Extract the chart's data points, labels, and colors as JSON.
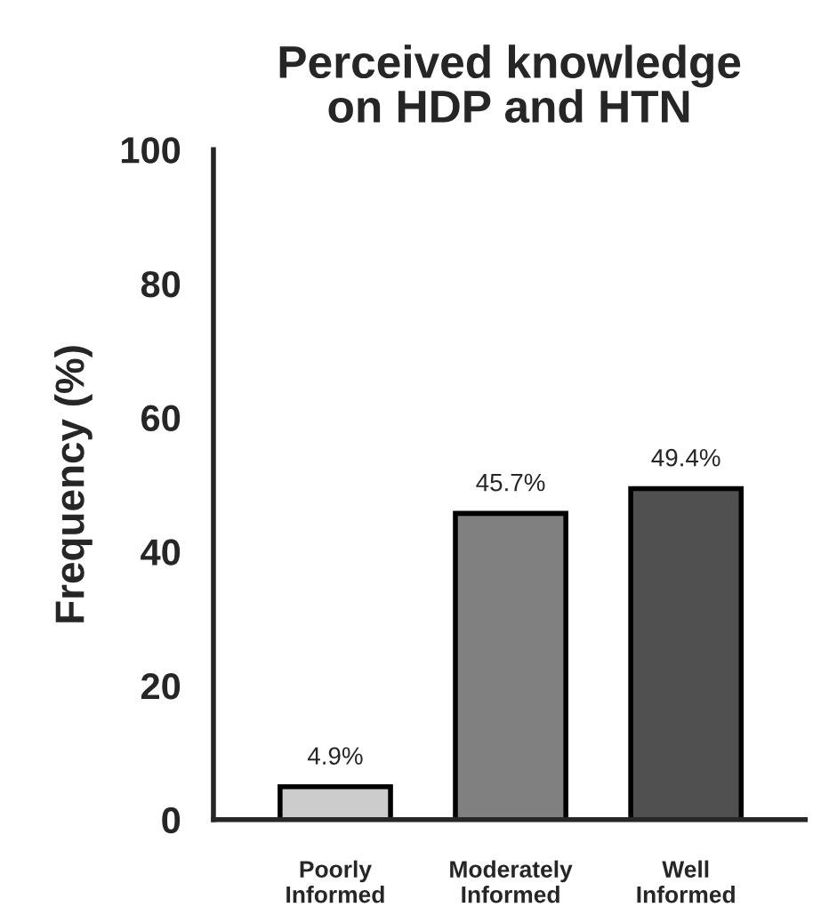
{
  "chart_data": {
    "type": "bar",
    "title": "Perceived knowledge\non HDP and HTN",
    "ylabel": "Frequency (%)",
    "categories": [
      "Poorly\nInformed",
      "Moderately\nInformed",
      "Well\nInformed"
    ],
    "values": [
      4.9,
      45.7,
      49.4
    ],
    "colors": [
      "#cccccc",
      "#808080",
      "#505050"
    ],
    "value_labels": [
      "4.9%",
      "45.7%",
      "49.4%"
    ],
    "ylim": [
      0,
      100
    ],
    "yticks": [
      0,
      20,
      40,
      60,
      80,
      100
    ]
  }
}
